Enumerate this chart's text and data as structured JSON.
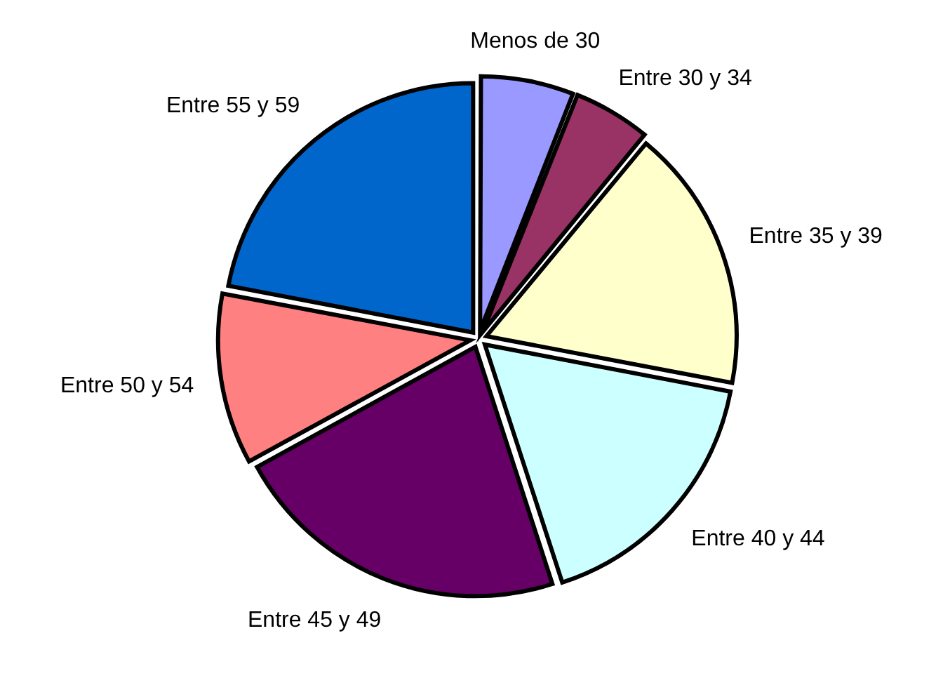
{
  "chart_data": {
    "type": "pie",
    "categories": [
      "Menos de 30",
      "Entre 30 y 34",
      "Entre 35 y 39",
      "Entre 40 y 44",
      "Entre 45 y 49",
      "Entre 50 y 54",
      "Entre 55 y 59"
    ],
    "values": [
      6,
      5,
      17,
      17,
      22,
      11,
      22
    ],
    "colors": [
      "#9999ff",
      "#993366",
      "#ffffcc",
      "#ccffff",
      "#660066",
      "#ff8080",
      "#0066cc"
    ],
    "legend": false
  }
}
